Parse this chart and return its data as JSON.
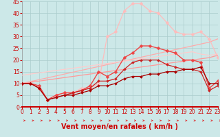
{
  "title": "",
  "xlabel": "Vent moyen/en rafales ( km/h )",
  "xlim": [
    0,
    23
  ],
  "ylim": [
    0,
    45
  ],
  "xticks": [
    0,
    1,
    2,
    3,
    4,
    5,
    6,
    7,
    8,
    9,
    10,
    11,
    12,
    13,
    14,
    15,
    16,
    17,
    18,
    19,
    20,
    21,
    22,
    23
  ],
  "yticks": [
    0,
    5,
    10,
    15,
    20,
    25,
    30,
    35,
    40,
    45
  ],
  "bg_color": "#cce8e8",
  "grid_color": "#aacccc",
  "xlabel_color": "#cc0000",
  "xlabel_fontsize": 7,
  "tick_color": "#cc0000",
  "tick_fontsize": 5.5,
  "series": [
    {
      "x": [
        0,
        1,
        2,
        3,
        4,
        5,
        6,
        7,
        8,
        9,
        10,
        11,
        12,
        13,
        14,
        15,
        16,
        17,
        18,
        19,
        20,
        21,
        22,
        23
      ],
      "y": [
        10.0,
        10.5,
        11.0,
        11.5,
        12.0,
        12.5,
        13.0,
        13.5,
        14.0,
        14.5,
        15.0,
        15.5,
        16.0,
        16.5,
        17.0,
        17.5,
        18.0,
        18.5,
        19.0,
        19.5,
        20.0,
        20.5,
        21.0,
        22.0
      ],
      "color": "#ff9999",
      "linewidth": 0.9,
      "marker": null,
      "linestyle": "-"
    },
    {
      "x": [
        0,
        1,
        2,
        3,
        4,
        5,
        6,
        7,
        8,
        9,
        10,
        11,
        12,
        13,
        14,
        15,
        16,
        17,
        18,
        19,
        20,
        21,
        22,
        23
      ],
      "y": [
        10.0,
        10.8,
        11.6,
        12.4,
        13.2,
        14.0,
        14.8,
        15.6,
        16.4,
        17.2,
        18.0,
        18.8,
        19.6,
        20.4,
        21.2,
        22.0,
        22.8,
        23.6,
        24.4,
        25.2,
        26.0,
        26.8,
        27.6,
        29.0
      ],
      "color": "#ffaaaa",
      "linewidth": 0.9,
      "marker": null,
      "linestyle": "-"
    },
    {
      "x": [
        0,
        1,
        2,
        3,
        4,
        5,
        6,
        7,
        8,
        9,
        10,
        11,
        12,
        13,
        14,
        15,
        16,
        17,
        18,
        19,
        20,
        21,
        22,
        23
      ],
      "y": [
        13.5,
        14.0,
        14.5,
        15.0,
        15.5,
        16.0,
        16.5,
        17.0,
        17.5,
        18.0,
        18.5,
        19.0,
        19.5,
        20.0,
        20.5,
        21.0,
        21.5,
        22.0,
        22.5,
        23.0,
        23.5,
        22.5,
        22.0,
        22.5
      ],
      "color": "#ffcccc",
      "linewidth": 0.9,
      "marker": null,
      "linestyle": "-"
    },
    {
      "x": [
        0,
        1,
        2,
        3,
        4,
        5,
        6,
        7,
        8,
        9,
        10,
        11,
        12,
        13,
        14,
        15,
        16,
        17,
        18,
        19,
        20,
        21,
        22,
        23
      ],
      "y": [
        10,
        10,
        8,
        3,
        5,
        6,
        6,
        8,
        8,
        10,
        30,
        32,
        41,
        44,
        44,
        41,
        40,
        36,
        32,
        31,
        31,
        32,
        29,
        21
      ],
      "color": "#ffbbbb",
      "linewidth": 0.9,
      "marker": "D",
      "markersize": 2.5,
      "linestyle": "-"
    },
    {
      "x": [
        0,
        1,
        2,
        3,
        4,
        5,
        6,
        7,
        8,
        9,
        10,
        11,
        12,
        13,
        14,
        15,
        16,
        17,
        18,
        19,
        20,
        21,
        22,
        23
      ],
      "y": [
        10,
        10,
        9,
        3,
        5,
        6,
        6,
        7,
        9,
        15,
        13,
        15,
        21,
        23,
        26,
        26,
        25,
        24,
        23,
        20,
        20,
        19,
        8,
        11
      ],
      "color": "#ee4444",
      "linewidth": 1.0,
      "marker": "D",
      "markersize": 2.5,
      "linestyle": "-"
    },
    {
      "x": [
        0,
        1,
        2,
        3,
        4,
        5,
        6,
        7,
        8,
        9,
        10,
        11,
        12,
        13,
        14,
        15,
        16,
        17,
        18,
        19,
        20,
        21,
        22,
        23
      ],
      "y": [
        10,
        10,
        8,
        3,
        4,
        5,
        6,
        7,
        8,
        11,
        11,
        12,
        16,
        19,
        20,
        20,
        20,
        18,
        17,
        16,
        16,
        15,
        7,
        9
      ],
      "color": "#cc2222",
      "linewidth": 0.9,
      "marker": "D",
      "markersize": 2,
      "linestyle": "-"
    },
    {
      "x": [
        0,
        1,
        2,
        3,
        4,
        5,
        6,
        7,
        8,
        9,
        10,
        11,
        12,
        13,
        14,
        15,
        16,
        17,
        18,
        19,
        20,
        21,
        22,
        23
      ],
      "y": [
        10,
        10,
        8,
        3,
        4,
        5,
        5,
        6,
        7,
        9,
        9,
        10,
        12,
        13,
        13,
        14,
        14,
        15,
        15,
        16,
        16,
        17,
        10,
        10
      ],
      "color": "#aa0000",
      "linewidth": 0.9,
      "marker": "D",
      "markersize": 2,
      "linestyle": "-"
    }
  ],
  "arrow_color": "#dd3333",
  "arrow_count": 24
}
